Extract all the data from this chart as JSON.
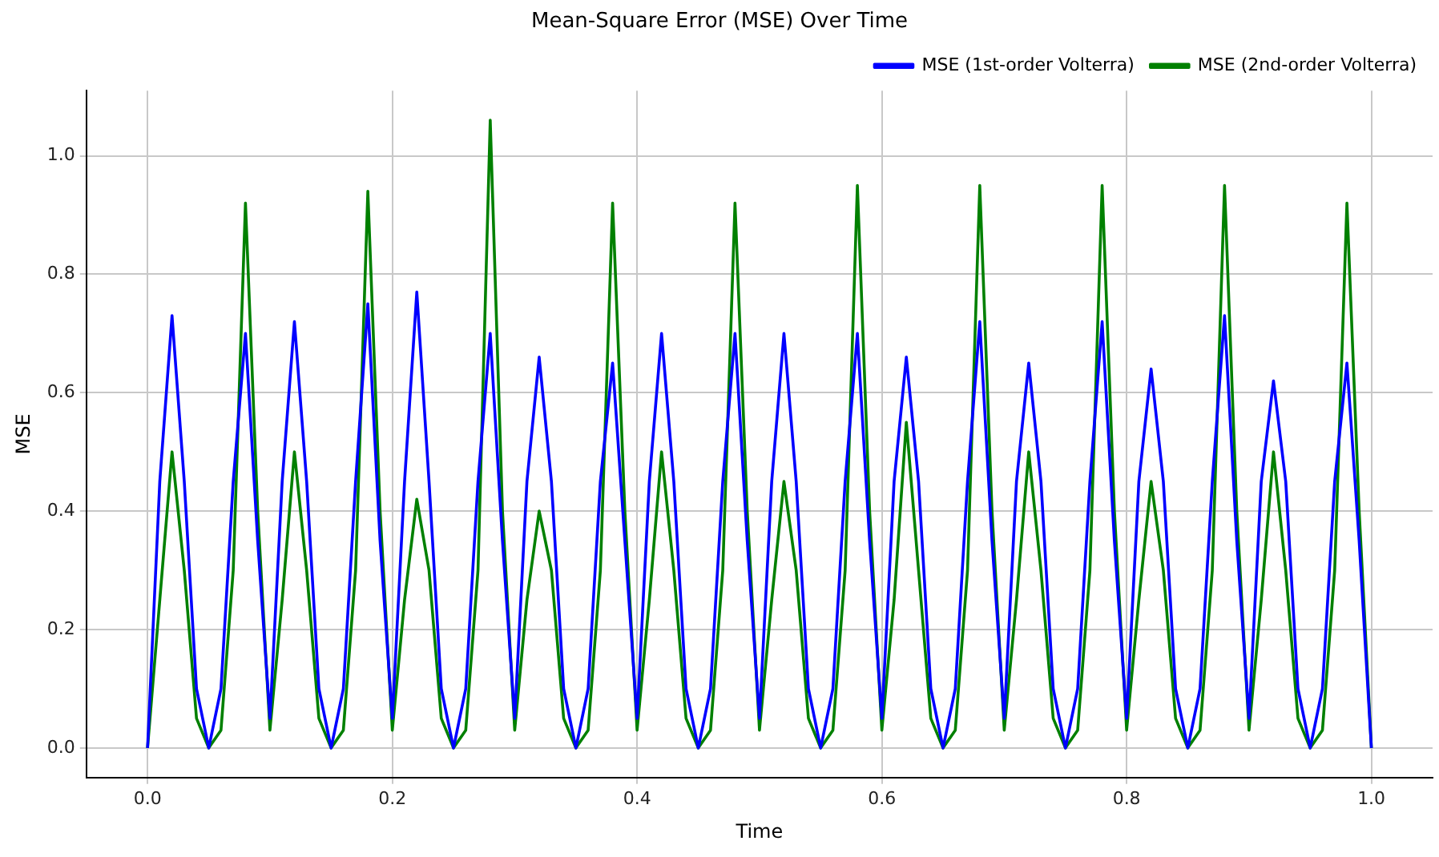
{
  "chart_data": {
    "type": "line",
    "title": "Mean-Square Error (MSE) Over Time",
    "xlabel": "Time",
    "ylabel": "MSE",
    "x": [
      0,
      0.01,
      0.02,
      0.03,
      0.04,
      0.05,
      0.06,
      0.07,
      0.08,
      0.09,
      0.1,
      0.11,
      0.12,
      0.13,
      0.14,
      0.15,
      0.16,
      0.17,
      0.18,
      0.19,
      0.2,
      0.21,
      0.22,
      0.23,
      0.24,
      0.25,
      0.26,
      0.27,
      0.28,
      0.29,
      0.3,
      0.31,
      0.32,
      0.33,
      0.34,
      0.35,
      0.36,
      0.37,
      0.38,
      0.39,
      0.4,
      0.41,
      0.42,
      0.43,
      0.44,
      0.45,
      0.46,
      0.47,
      0.48,
      0.49,
      0.5,
      0.51,
      0.52,
      0.53,
      0.54,
      0.55,
      0.56,
      0.57,
      0.58,
      0.59,
      0.6,
      0.61,
      0.62,
      0.63,
      0.64,
      0.65,
      0.66,
      0.67,
      0.68,
      0.69,
      0.7,
      0.71,
      0.72,
      0.73,
      0.74,
      0.75,
      0.76,
      0.77,
      0.78,
      0.79,
      0.8,
      0.81,
      0.82,
      0.83,
      0.84,
      0.85,
      0.86,
      0.87,
      0.88,
      0.89,
      0.9,
      0.91,
      0.92,
      0.93,
      0.94,
      0.95,
      0.96,
      0.97,
      0.98,
      0.99,
      1
    ],
    "series": [
      {
        "name": "MSE (1st-order Volterra)",
        "color": "#0000ff",
        "values": [
          0,
          0.45,
          0.73,
          0.45,
          0.1,
          0,
          0.1,
          0.45,
          0.7,
          0.35,
          0.05,
          0.45,
          0.72,
          0.45,
          0.1,
          0,
          0.1,
          0.45,
          0.75,
          0.35,
          0.05,
          0.45,
          0.77,
          0.45,
          0.1,
          0,
          0.1,
          0.45,
          0.7,
          0.35,
          0.05,
          0.45,
          0.66,
          0.45,
          0.1,
          0,
          0.1,
          0.45,
          0.65,
          0.35,
          0.05,
          0.45,
          0.7,
          0.45,
          0.1,
          0,
          0.1,
          0.45,
          0.7,
          0.35,
          0.05,
          0.45,
          0.7,
          0.45,
          0.1,
          0,
          0.1,
          0.45,
          0.7,
          0.35,
          0.05,
          0.45,
          0.66,
          0.45,
          0.1,
          0,
          0.1,
          0.45,
          0.72,
          0.35,
          0.05,
          0.45,
          0.65,
          0.45,
          0.1,
          0,
          0.1,
          0.45,
          0.72,
          0.35,
          0.05,
          0.45,
          0.64,
          0.45,
          0.1,
          0,
          0.1,
          0.45,
          0.73,
          0.35,
          0.05,
          0.45,
          0.62,
          0.45,
          0.1,
          0,
          0.1,
          0.45,
          0.65,
          0.35,
          0
        ]
      },
      {
        "name": "MSE (2nd-order Volterra)",
        "color": "#008000",
        "values": [
          0,
          0.25,
          0.5,
          0.3,
          0.05,
          0,
          0.03,
          0.3,
          0.92,
          0.4,
          0.03,
          0.25,
          0.5,
          0.3,
          0.05,
          0,
          0.03,
          0.3,
          0.94,
          0.4,
          0.03,
          0.25,
          0.42,
          0.3,
          0.05,
          0,
          0.03,
          0.3,
          1.06,
          0.4,
          0.03,
          0.25,
          0.4,
          0.3,
          0.05,
          0,
          0.03,
          0.3,
          0.92,
          0.4,
          0.03,
          0.25,
          0.5,
          0.3,
          0.05,
          0,
          0.03,
          0.3,
          0.92,
          0.4,
          0.03,
          0.25,
          0.45,
          0.3,
          0.05,
          0,
          0.03,
          0.3,
          0.95,
          0.4,
          0.03,
          0.25,
          0.55,
          0.3,
          0.05,
          0,
          0.03,
          0.3,
          0.95,
          0.4,
          0.03,
          0.25,
          0.5,
          0.3,
          0.05,
          0,
          0.03,
          0.3,
          0.95,
          0.4,
          0.03,
          0.25,
          0.45,
          0.3,
          0.05,
          0,
          0.03,
          0.3,
          0.95,
          0.4,
          0.03,
          0.25,
          0.5,
          0.3,
          0.05,
          0,
          0.03,
          0.3,
          0.92,
          0.4,
          0
        ]
      }
    ],
    "xlim": [
      -0.05,
      1.05
    ],
    "xticks": [
      {
        "value": 0,
        "label": "0.0"
      },
      0.2,
      0.4,
      0.6,
      0.8,
      {
        "value": 1,
        "label": "1.0"
      }
    ],
    "ylim": [
      -0.05,
      1.11
    ],
    "yticks": [
      {
        "value": 0,
        "label": "0.0"
      },
      0.2,
      0.4,
      0.6,
      0.8,
      {
        "value": 1,
        "label": "1.0"
      }
    ],
    "grid": true,
    "legend": "top right",
    "line_style": "solid",
    "marker": "none"
  }
}
